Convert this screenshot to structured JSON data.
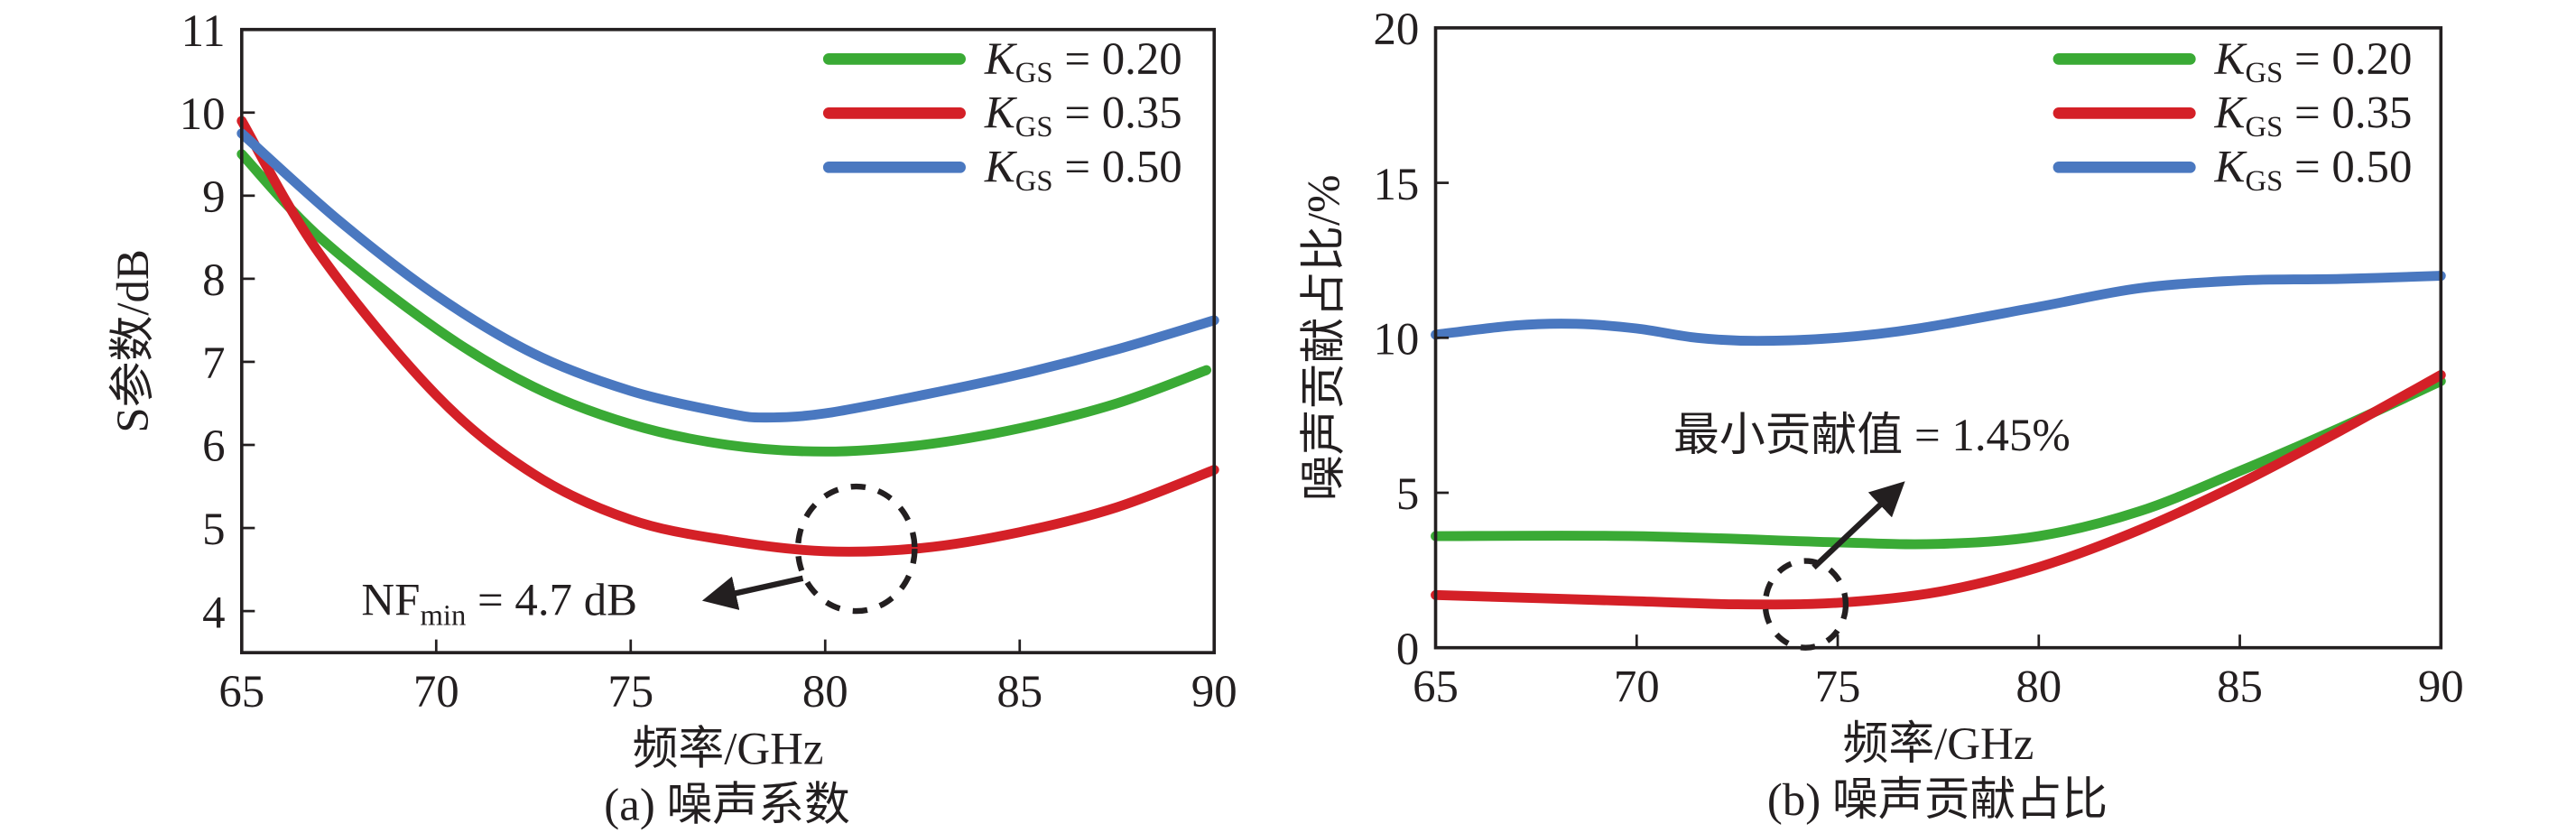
{
  "chart_data": [
    {
      "type": "line",
      "title": "(a) 噪声系数",
      "xlabel": "频率/GHz",
      "ylabel": "S参数/dB",
      "xlim": [
        65,
        90
      ],
      "ylim": [
        3.5,
        11
      ],
      "xticks": [
        65,
        70,
        75,
        80,
        85,
        90
      ],
      "yticks": [
        4,
        5,
        6,
        7,
        8,
        9,
        10,
        11
      ],
      "grid": false,
      "legend_position": "top-right",
      "series": [
        {
          "name": "K_GS = 0.20",
          "label_main": "K",
          "label_sub": "GS",
          "label_rest": " = 0.20",
          "color": "#3aaa35",
          "x": [
            65,
            67,
            70,
            72.5,
            75,
            77.5,
            80,
            82.5,
            85,
            87.5,
            89.8
          ],
          "y": [
            9.5,
            8.5,
            7.4,
            6.7,
            6.25,
            6.0,
            5.92,
            6.0,
            6.2,
            6.5,
            6.9
          ]
        },
        {
          "name": "K_GS = 0.35",
          "label_main": "K",
          "label_sub": "GS",
          "label_rest": " = 0.35",
          "color": "#d42027",
          "x": [
            65,
            67,
            70,
            72.5,
            75,
            77.5,
            80,
            82.5,
            85,
            87.5,
            90
          ],
          "y": [
            9.9,
            8.3,
            6.6,
            5.65,
            5.1,
            4.85,
            4.72,
            4.76,
            4.95,
            5.25,
            5.7
          ]
        },
        {
          "name": "K_GS = 0.50",
          "label_main": "K",
          "label_sub": "GS",
          "label_rest": " = 0.50",
          "color": "#4a78c0",
          "x": [
            65,
            67.5,
            70,
            72.5,
            75,
            77.5,
            78.5,
            80,
            82.5,
            85,
            87.5,
            90
          ],
          "y": [
            9.75,
            8.7,
            7.8,
            7.1,
            6.65,
            6.38,
            6.33,
            6.38,
            6.6,
            6.85,
            7.15,
            7.5
          ]
        }
      ],
      "annotation": {
        "main": "NF",
        "sub": "min",
        "rest": " = 4.7 dB",
        "circle_center": [
          80.8,
          4.75
        ],
        "circle_radius": [
          1.5,
          0.75
        ],
        "text_anchor": [
          72.7,
          4.15
        ]
      }
    },
    {
      "type": "line",
      "title": "(b) 噪声贡献占比",
      "xlabel": "频率/GHz",
      "ylabel": "噪声贡献占比/%",
      "xlim": [
        65,
        90
      ],
      "ylim": [
        0,
        20
      ],
      "xticks": [
        65,
        70,
        75,
        80,
        85,
        90
      ],
      "yticks": [
        0,
        5,
        10,
        15,
        20
      ],
      "grid": false,
      "legend_position": "top-right",
      "series": [
        {
          "name": "K_GS = 0.20",
          "label_main": "K",
          "label_sub": "GS",
          "label_rest": " = 0.20",
          "color": "#3aaa35",
          "x": [
            65,
            70,
            75,
            77.5,
            80,
            82.5,
            85,
            87.5,
            90
          ],
          "y": [
            3.6,
            3.6,
            3.4,
            3.35,
            3.6,
            4.4,
            5.7,
            7.1,
            8.6
          ]
        },
        {
          "name": "K_GS = 0.35",
          "label_main": "K",
          "label_sub": "GS",
          "label_rest": " = 0.35",
          "color": "#d42027",
          "x": [
            65,
            70,
            72.5,
            75,
            77.5,
            80,
            82.5,
            85,
            87.5,
            90
          ],
          "y": [
            1.7,
            1.5,
            1.4,
            1.45,
            1.8,
            2.6,
            3.8,
            5.3,
            7.0,
            8.8
          ]
        },
        {
          "name": "K_GS = 0.50",
          "label_main": "K",
          "label_sub": "GS",
          "label_rest": " = 0.50",
          "color": "#4a78c0",
          "x": [
            65,
            67,
            68.5,
            70,
            71.5,
            73,
            75,
            77,
            80,
            82.5,
            85,
            87.5,
            90
          ],
          "y": [
            10.1,
            10.4,
            10.45,
            10.3,
            10.0,
            9.9,
            10.0,
            10.3,
            11.0,
            11.6,
            11.85,
            11.9,
            12.0
          ]
        }
      ],
      "annotation": {
        "text": "最小贡献值 = 1.45%",
        "circle_center": [
          74.2,
          1.4
        ],
        "circle_radius": [
          1.0,
          1.4
        ],
        "text_anchor": [
          76.2,
          5.2
        ]
      }
    }
  ]
}
